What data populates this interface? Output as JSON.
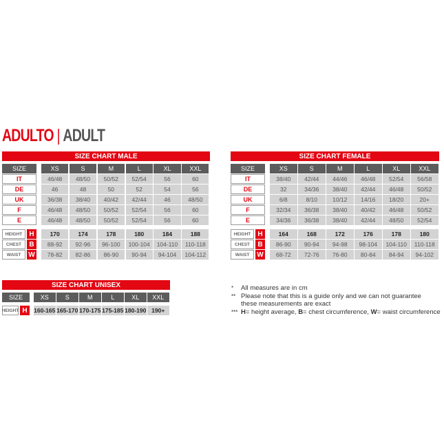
{
  "heading": {
    "part1": "ADULTO",
    "separator": "|",
    "part2": "ADULT"
  },
  "colors": {
    "accent": "#e30613",
    "header": "#5c5c5c",
    "cell": "#d3d3d3"
  },
  "tables": [
    {
      "title": "SIZE CHART MALE",
      "size_label": "SIZE",
      "sizes": [
        "XS",
        "S",
        "M",
        "L",
        "XL",
        "XXL"
      ],
      "country_rows": [
        {
          "label": "IT",
          "values": [
            "46/48",
            "48/50",
            "50/52",
            "52/54",
            "56",
            "60"
          ]
        },
        {
          "label": "DE",
          "values": [
            "46",
            "48",
            "50",
            "52",
            "54",
            "56"
          ]
        },
        {
          "label": "UK",
          "values": [
            "36/38",
            "38/40",
            "40/42",
            "42/44",
            "46",
            "48/50"
          ]
        },
        {
          "label": "F",
          "values": [
            "46/48",
            "48/50",
            "50/52",
            "52/54",
            "56",
            "60"
          ]
        },
        {
          "label": "E",
          "values": [
            "46/48",
            "48/50",
            "50/52",
            "52/54",
            "56",
            "60"
          ]
        }
      ],
      "measure_rows": [
        {
          "label": "HEIGHT",
          "letter": "H",
          "values": [
            "170",
            "174",
            "178",
            "180",
            "184",
            "188"
          ]
        },
        {
          "label": "CHEST",
          "letter": "B",
          "values": [
            "88-92",
            "92-96",
            "96-100",
            "100-104",
            "104-110",
            "110-118"
          ]
        },
        {
          "label": "WAIST",
          "letter": "W",
          "values": [
            "78-82",
            "82-86",
            "86-90",
            "90-94",
            "94-104",
            "104-112"
          ]
        }
      ]
    },
    {
      "title": "SIZE CHART FEMALE",
      "size_label": "SIZE",
      "sizes": [
        "XS",
        "S",
        "M",
        "L",
        "XL",
        "XXL"
      ],
      "country_rows": [
        {
          "label": "IT",
          "values": [
            "38/40",
            "42/44",
            "44/46",
            "46/48",
            "52/54",
            "56/58"
          ]
        },
        {
          "label": "DE",
          "values": [
            "32",
            "34/36",
            "38/40",
            "42/44",
            "46/48",
            "50/52"
          ]
        },
        {
          "label": "UK",
          "values": [
            "6/8",
            "8/10",
            "10/12",
            "14/16",
            "18/20",
            "20+"
          ]
        },
        {
          "label": "F",
          "values": [
            "32/34",
            "36/38",
            "38/40",
            "40/42",
            "46/48",
            "50/52"
          ]
        },
        {
          "label": "E",
          "values": [
            "34/36",
            "36/38",
            "38/40",
            "42/44",
            "48/50",
            "52/54"
          ]
        }
      ],
      "measure_rows": [
        {
          "label": "HEIGHT",
          "letter": "H",
          "values": [
            "164",
            "168",
            "172",
            "176",
            "178",
            "180"
          ]
        },
        {
          "label": "CHEST",
          "letter": "B",
          "values": [
            "86-90",
            "90-94",
            "94-98",
            "98-104",
            "104-110",
            "110-118"
          ]
        },
        {
          "label": "WAIST",
          "letter": "W",
          "values": [
            "68-72",
            "72-76",
            "76-80",
            "80-84",
            "84-94",
            "94-102"
          ]
        }
      ]
    },
    {
      "title": "SIZE CHART UNISEX",
      "size_label": "SIZE",
      "sizes": [
        "XS",
        "S",
        "M",
        "L",
        "XL",
        "XXL"
      ],
      "country_rows": [],
      "measure_rows": [
        {
          "label": "HEIGHT",
          "letter": "H",
          "values": [
            "160-165",
            "165-170",
            "170-175",
            "175-185",
            "180-190",
            "190+"
          ]
        }
      ]
    }
  ],
  "notes": [
    {
      "marker": "*",
      "text": "All measures are in cm"
    },
    {
      "marker": "**",
      "text": "Please note that this is a guide only and we can not guarantee these measurements are exact"
    },
    {
      "marker": "***",
      "parts": [
        {
          "b": "H",
          "t": "= height average, "
        },
        {
          "b": "B",
          "t": "= chest circumference, "
        },
        {
          "b": "W",
          "t": "= waist circumference"
        }
      ]
    }
  ]
}
